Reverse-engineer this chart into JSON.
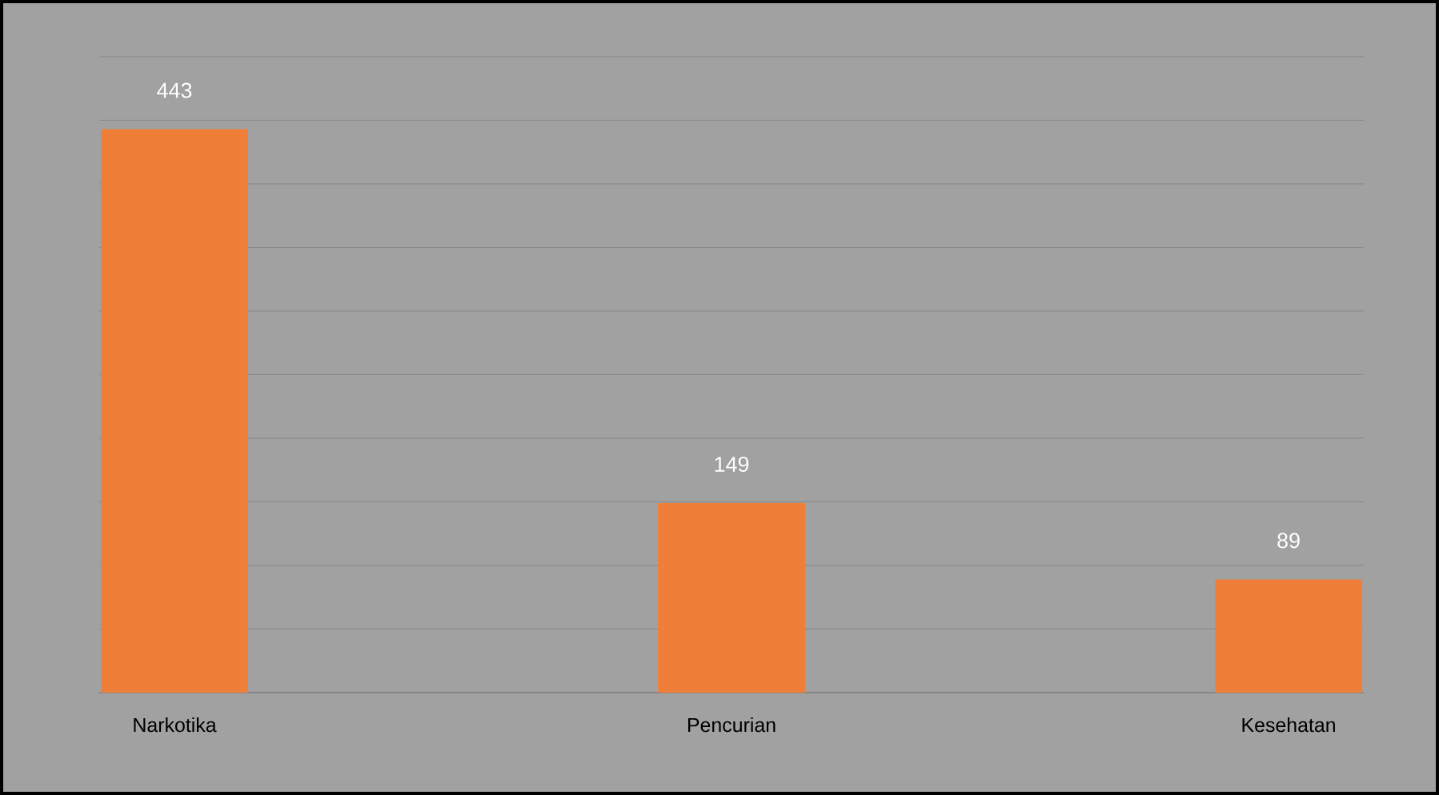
{
  "chart_data": {
    "type": "bar",
    "categories": [
      "Narkotika",
      "Pencurian",
      "Kesehatan"
    ],
    "values": [
      443,
      149,
      89
    ],
    "color": "#ef7f38",
    "grid": "y",
    "tick_labels": "x",
    "data_labels": true
  }
}
